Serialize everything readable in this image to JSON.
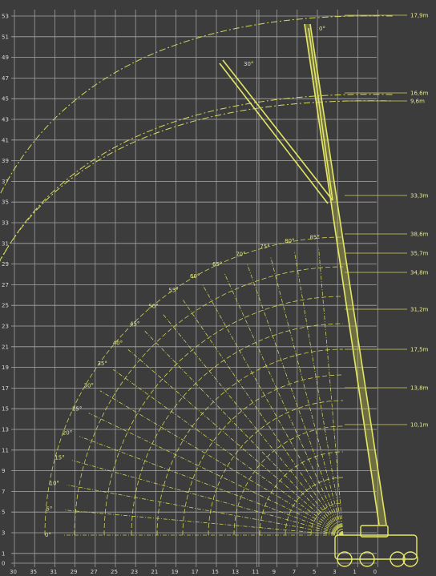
{
  "chart": {
    "y_ticks": [
      "53",
      "51",
      "49",
      "47",
      "45",
      "43",
      "41",
      "39",
      "37",
      "35",
      "33",
      "31",
      "29",
      "27",
      "25",
      "23",
      "21",
      "19",
      "17",
      "15",
      "13",
      "11",
      "9",
      "7",
      "5",
      "3",
      "1",
      "0"
    ],
    "x_ticks": [
      "30",
      "35",
      "31",
      "29",
      "27",
      "25",
      "23",
      "21",
      "19",
      "17",
      "15",
      "13",
      "11",
      "9",
      "7",
      "5",
      "3",
      "1",
      "0"
    ],
    "height_labels": [
      "17,9m",
      "16,6m",
      "9,6m",
      "33,3m",
      "38,6m",
      "35,7m",
      "34,8m",
      "31,2m",
      "17,5m",
      "13,8m",
      "10,1m"
    ],
    "angle_labels": [
      "0°",
      "5°",
      "10°",
      "15°",
      "20°",
      "25°",
      "30°",
      "35°",
      "40°",
      "45°",
      "50°",
      "55°",
      "60°",
      "65°",
      "70°",
      "75°",
      "80°",
      "85°"
    ],
    "jib_labels": [
      "0°",
      "30°"
    ]
  },
  "colors": {
    "background": "#3c3c3c",
    "grid": "#a0a0a0",
    "lines": "#d6d85a"
  }
}
